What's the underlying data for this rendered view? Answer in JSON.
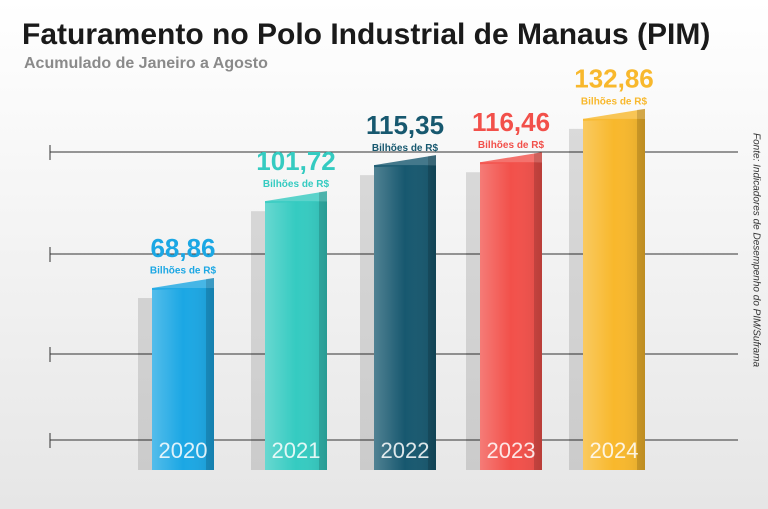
{
  "chart_data": {
    "type": "bar",
    "title": "Faturamento no Polo Industrial de Manaus (PIM)",
    "subtitle": "Acumulado de Janeiro a Agosto",
    "categories": [
      "2020",
      "2021",
      "2022",
      "2023",
      "2024"
    ],
    "values": [
      68.86,
      101.72,
      115.35,
      116.46,
      132.86
    ],
    "value_labels": [
      "68,86",
      "101,72",
      "115,35",
      "116,46",
      "132,86"
    ],
    "unit": "Bilhões de R$",
    "colors": [
      "#1ba7e4",
      "#35cbc1",
      "#17586f",
      "#f2504a",
      "#f8b82c"
    ],
    "ylim": [
      0,
      140
    ],
    "source": "Fonte: Indicadores de Desempenho do PIM/Suframa"
  }
}
